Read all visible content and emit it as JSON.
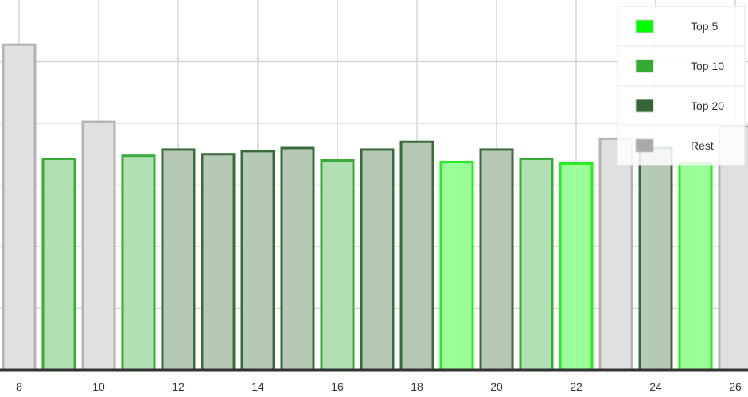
{
  "chart_data": {
    "type": "bar",
    "x": [
      8,
      9,
      10,
      11,
      12,
      13,
      14,
      15,
      16,
      17,
      18,
      19,
      20,
      21,
      22,
      23,
      24,
      25,
      26
    ],
    "values": [
      105.5,
      68.5,
      80.5,
      69.5,
      71.5,
      70,
      71,
      72,
      68,
      71.5,
      74,
      67.5,
      71.5,
      68.5,
      67,
      75,
      72,
      67,
      79
    ],
    "groups": [
      "Rest",
      "Top 10",
      "Rest",
      "Top 10",
      "Top 20",
      "Top 20",
      "Top 20",
      "Top 20",
      "Top 10",
      "Top 20",
      "Top 20",
      "Top 5",
      "Top 20",
      "Top 10",
      "Top 5",
      "Rest",
      "Top 20",
      "Top 5",
      "Rest"
    ],
    "xticks": [
      8,
      10,
      12,
      14,
      16,
      18,
      20,
      22,
      24,
      26
    ],
    "xlim": [
      7.5,
      26.5
    ],
    "ylim": [
      0,
      120
    ],
    "yticks": [
      0,
      20,
      40,
      60,
      80,
      100
    ],
    "grid": true,
    "legend_position": "top-right",
    "legend": [
      {
        "label": "Top 5",
        "color": "#00ff00"
      },
      {
        "label": "Top 10",
        "color": "#33aa33"
      },
      {
        "label": "Top 20",
        "color": "#336633"
      },
      {
        "label": "Rest",
        "color": "#aaaaaa"
      }
    ],
    "styles": {
      "Top 5": {
        "fill": "#99ff99",
        "stroke": "#22ee22"
      },
      "Top 10": {
        "fill": "#b3e0b3",
        "stroke": "#3aaa3a"
      },
      "Top 20": {
        "fill": "#b5c9b5",
        "stroke": "#3a6b3a"
      },
      "Rest": {
        "fill": "#e0e0e0",
        "stroke": "#b3b3b3"
      }
    },
    "gridColor": "#d6d6d6",
    "axisColor": "#333333"
  }
}
